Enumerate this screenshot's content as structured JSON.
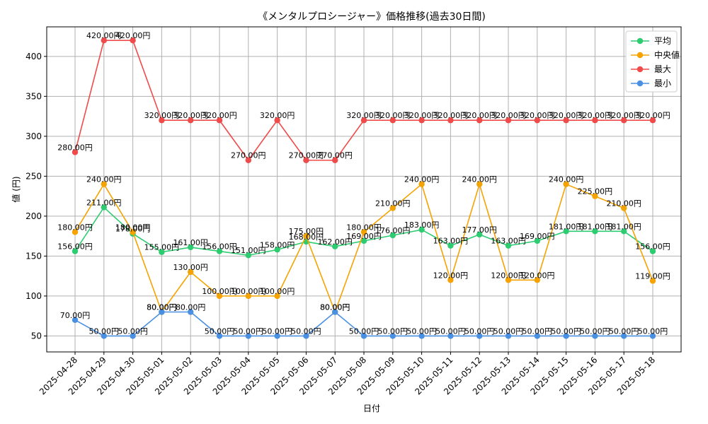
{
  "chart_data": {
    "type": "line",
    "title": "《メンタルプロシージャー》価格推移(過去30日間)",
    "xlabel": "日付",
    "ylabel": "値 (円)",
    "ylim": [
      30,
      437
    ],
    "yticks": [
      50,
      100,
      150,
      200,
      250,
      300,
      350,
      400
    ],
    "grid": true,
    "legend_position": "top-right",
    "label_suffix": "円",
    "categories": [
      "2025-04-28",
      "2025-04-29",
      "2025-04-30",
      "2025-05-01",
      "2025-05-02",
      "2025-05-03",
      "2025-05-04",
      "2025-05-05",
      "2025-05-06",
      "2025-05-07",
      "2025-05-08",
      "2025-05-09",
      "2025-05-10",
      "2025-05-11",
      "2025-05-12",
      "2025-05-13",
      "2025-05-14",
      "2025-05-15",
      "2025-05-16",
      "2025-05-17",
      "2025-05-18"
    ],
    "series": [
      {
        "name": "平均",
        "color": "#2ecc71",
        "values": [
          156,
          211,
          178,
          155,
          161,
          156,
          151,
          158,
          168,
          162,
          169,
          176,
          183,
          163,
          177,
          163,
          169,
          181,
          181,
          181,
          156
        ]
      },
      {
        "name": "中央値",
        "color": "#f5a300",
        "values": [
          180,
          240,
          180,
          80,
          130,
          100,
          100,
          100,
          175,
          80,
          180,
          210,
          240,
          120,
          240,
          120,
          120,
          240,
          225,
          210,
          119
        ]
      },
      {
        "name": "最大",
        "color": "#ef4b4b",
        "values": [
          280,
          420,
          420,
          320,
          320,
          320,
          270,
          320,
          270,
          270,
          320,
          320,
          320,
          320,
          320,
          320,
          320,
          320,
          320,
          320,
          320
        ]
      },
      {
        "name": "最小",
        "color": "#4a90e2",
        "values": [
          70,
          50,
          50,
          80,
          80,
          50,
          50,
          50,
          50,
          80,
          50,
          50,
          50,
          50,
          50,
          50,
          50,
          50,
          50,
          50,
          50
        ]
      }
    ]
  }
}
